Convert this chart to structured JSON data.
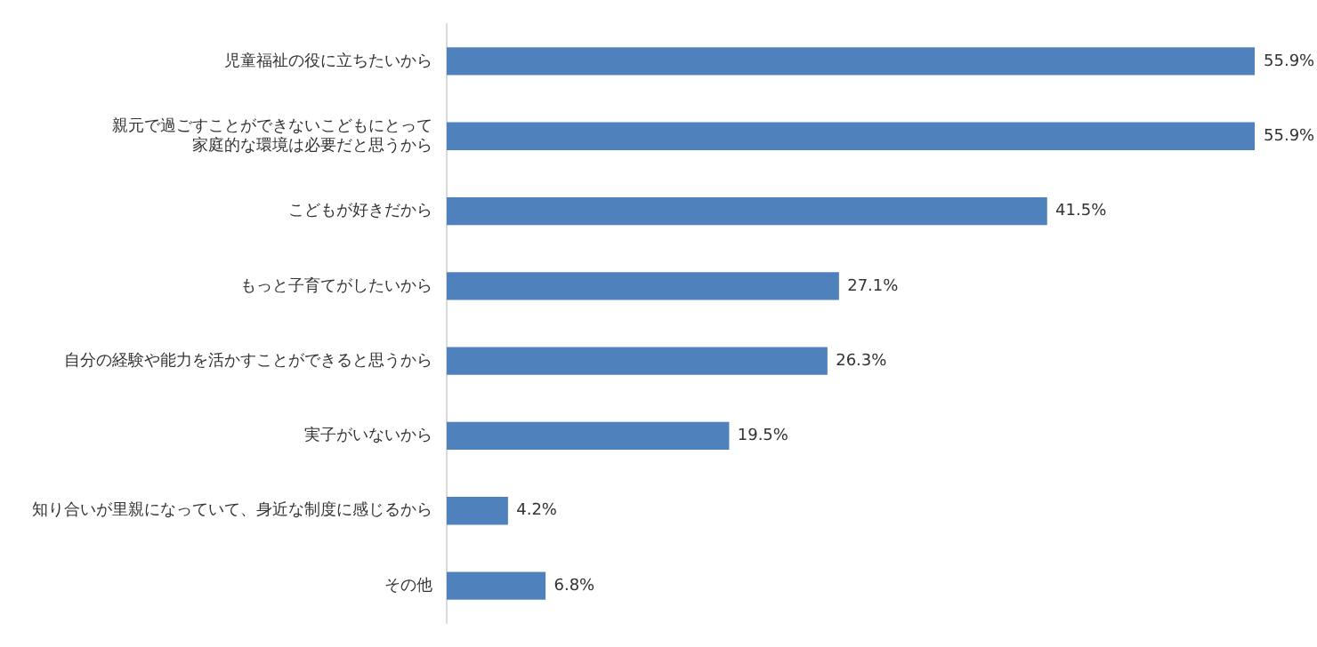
{
  "chart_data": {
    "type": "bar",
    "orientation": "horizontal",
    "categories": [
      "児童福祉の役に立ちたいから",
      "親元で過ごすことができないこどもにとって家庭的な環境は必要だと思うから",
      "こどもが好きだから",
      "もっと子育てがしたいから",
      "自分の経験や能力を活かすことができると思うから",
      "実子がいないから",
      "知り合いが里親になっていて、身近な制度に感じるから",
      "その他"
    ],
    "values": [
      55.9,
      55.9,
      41.5,
      27.1,
      26.3,
      19.5,
      4.2,
      6.8
    ],
    "value_labels": [
      "55.9%",
      "55.9%",
      "41.5%",
      "27.1%",
      "26.3%",
      "19.5%",
      "4.2%",
      "6.8%"
    ],
    "color": "#4f81bd",
    "legend": false,
    "tick_labels": "y"
  }
}
